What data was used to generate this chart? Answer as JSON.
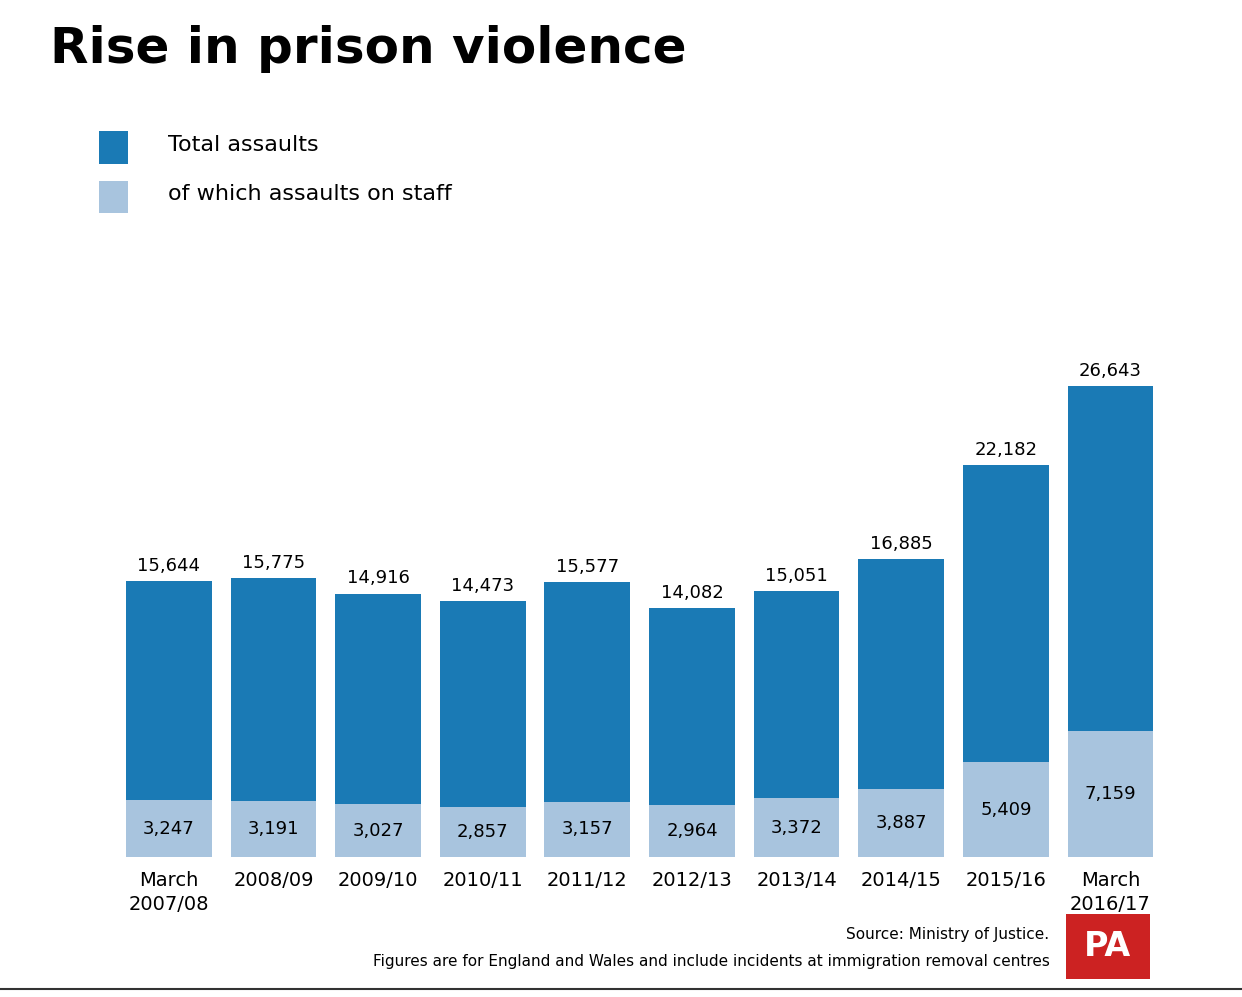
{
  "title": "Rise in prison violence",
  "categories": [
    "March\n2007/08",
    "2008/09",
    "2009/10",
    "2010/11",
    "2011/12",
    "2012/13",
    "2013/14",
    "2014/15",
    "2015/16",
    "March\n2016/17"
  ],
  "total_assaults": [
    15644,
    15775,
    14916,
    14473,
    15577,
    14082,
    15051,
    16885,
    22182,
    26643
  ],
  "staff_assaults": [
    3247,
    3191,
    3027,
    2857,
    3157,
    2964,
    3372,
    3887,
    5409,
    7159
  ],
  "bar_color_dark": "#1a7ab5",
  "bar_color_light": "#a8c4de",
  "background_color": "#ffffff",
  "legend_label_total": "Total assaults",
  "legend_label_staff": "of which assaults on staff",
  "source_text": "Source: Ministry of Justice.",
  "footnote_text": "Figures are for England and Wales and include incidents at immigration removal centres",
  "title_fontsize": 36,
  "value_fontsize": 13,
  "tick_fontsize": 14,
  "ylim": [
    0,
    31000
  ],
  "pa_logo_color": "#cc2222"
}
